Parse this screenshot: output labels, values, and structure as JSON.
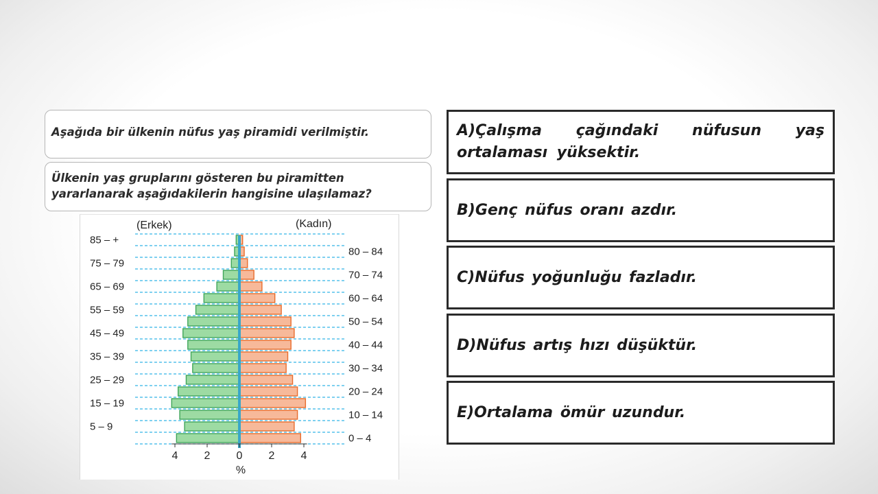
{
  "question": {
    "intro": "Aşağıda bir ülkenin nüfus yaş piramidi verilmiştir.",
    "prompt_line1": "Ülkenin yaş gruplarını gösteren bu piramitten",
    "prompt_line2": "yararlanarak aşağıdakilerin hangisine ulaşılamaz?"
  },
  "options": {
    "a": "A)Çalışma çağındaki nüfusun yaş ortalaması yüksektir.",
    "b": "B)Genç nüfus oranı azdır.",
    "c": "C)Nüfus yoğunluğu fazladır.",
    "d": "D)Nüfus artış hızı düşüktür.",
    "e": "E)Ortalama ömür uzundur."
  },
  "colors": {
    "male_fill": "#9ddba3",
    "male_stroke": "#3fa55a",
    "female_fill": "#f7b99a",
    "female_stroke": "#e86c2c",
    "axis_line": "#3aa7c8",
    "grid_dash": "#32b4e6"
  },
  "chart_data": {
    "type": "bar",
    "subtype": "population-pyramid",
    "left_label": "(Erkek)",
    "right_label": "(Kadın)",
    "xlabel": "%",
    "x_ticks": [
      "4",
      "2",
      "0",
      "2",
      "4"
    ],
    "xlim": [
      -4,
      4
    ],
    "grid": "dashed horizontal lines",
    "age_groups": [
      "0 – 4",
      "5 – 9",
      "10 – 14",
      "15 – 19",
      "20 – 24",
      "25 – 29",
      "30 – 34",
      "35 – 39",
      "40 – 44",
      "45 – 49",
      "50 – 54",
      "55 – 59",
      "60 – 64",
      "65 – 69",
      "70 – 74",
      "75 – 79",
      "80 – 84",
      "85 – +"
    ],
    "left_axis_labels": [
      "5 – 9",
      "15 – 19",
      "25 – 29",
      "35 – 39",
      "45 – 49",
      "55 – 59",
      "65 – 69",
      "75 – 79",
      "85 – +"
    ],
    "right_axis_labels": [
      "0 – 4",
      "10 – 14",
      "20 – 24",
      "30 – 34",
      "40 – 44",
      "50 – 54",
      "60 – 64",
      "70 – 74",
      "80 – 84"
    ],
    "series": [
      {
        "name": "(Erkek)",
        "values": [
          3.9,
          3.4,
          3.7,
          4.2,
          3.8,
          3.3,
          2.9,
          3.0,
          3.2,
          3.5,
          3.2,
          2.7,
          2.2,
          1.4,
          1.0,
          0.5,
          0.3,
          0.2
        ]
      },
      {
        "name": "(Kadın)",
        "values": [
          3.8,
          3.4,
          3.6,
          4.1,
          3.6,
          3.3,
          2.9,
          3.0,
          3.2,
          3.4,
          3.2,
          2.6,
          2.2,
          1.4,
          0.9,
          0.5,
          0.3,
          0.2
        ]
      }
    ]
  }
}
